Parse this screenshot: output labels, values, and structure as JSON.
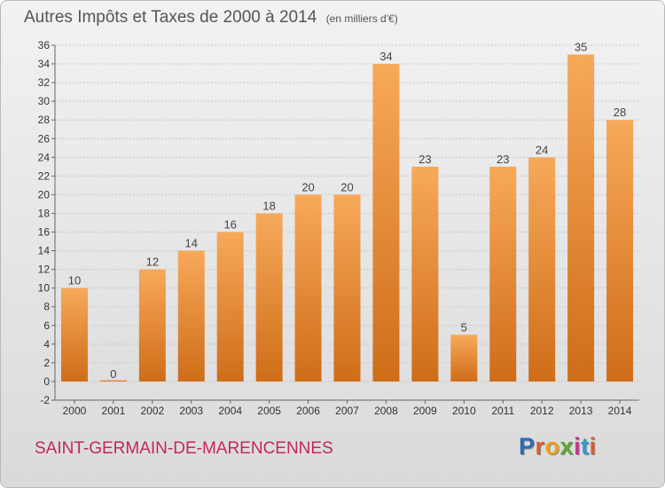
{
  "header": {
    "title": "Autres Impôts et Taxes de 2000 à 2014",
    "subtitle": "(en milliers d'€)"
  },
  "footer": {
    "commune": "SAINT-GERMAIN-DE-MARENCENNES",
    "logo_text": "Proxiti",
    "logo_colors": [
      "#2f6ab5",
      "#e05a2a",
      "#f0a020",
      "#5aa832",
      "#c43a8a",
      "#2f9ad5",
      "#e05a2a"
    ]
  },
  "colors": {
    "bar_top": "#f7a95a",
    "bar_bottom": "#cf6d18",
    "grid": "#c8c8c8",
    "axis_text": "#333333"
  },
  "chart_data": {
    "type": "bar",
    "title": "Autres Impôts et Taxes de 2000 à 2014",
    "subtitle": "(en milliers d'€)",
    "xlabel": "",
    "ylabel": "",
    "categories": [
      "2000",
      "2001",
      "2002",
      "2003",
      "2004",
      "2005",
      "2006",
      "2007",
      "2008",
      "2009",
      "2010",
      "2011",
      "2012",
      "2013",
      "2014"
    ],
    "values": [
      10,
      0,
      12,
      14,
      16,
      18,
      20,
      20,
      34,
      23,
      5,
      23,
      24,
      35,
      28
    ],
    "ylim": [
      -2,
      36
    ],
    "yticks": [
      -2,
      0,
      2,
      4,
      6,
      8,
      10,
      12,
      14,
      16,
      18,
      20,
      22,
      24,
      26,
      28,
      30,
      32,
      34,
      36
    ],
    "grid": true,
    "legend": "none"
  }
}
